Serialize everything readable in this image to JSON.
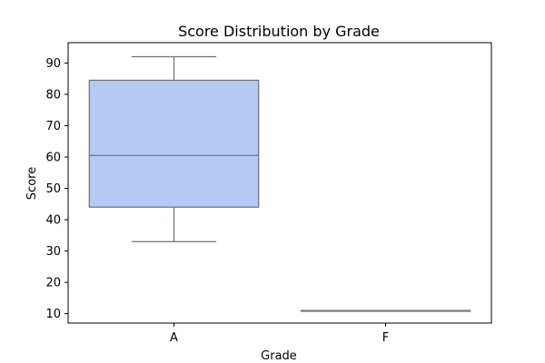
{
  "chart_data": {
    "type": "box",
    "title": "Score Distribution by Grade",
    "xlabel": "Grade",
    "ylabel": "Score",
    "categories": [
      "A",
      "F"
    ],
    "boxes": [
      {
        "category": "A",
        "min": 33,
        "q1": 44,
        "median": 60.5,
        "q3": 84.5,
        "max": 92
      },
      {
        "category": "F",
        "min": 11,
        "q1": 11,
        "median": 11,
        "q3": 11,
        "max": 11
      }
    ],
    "yticks": [
      10,
      20,
      30,
      40,
      50,
      60,
      70,
      80,
      90
    ],
    "ylim": [
      7,
      96.5
    ],
    "grid": false,
    "colors": {
      "box_fill": "#b4c9f4",
      "box_edge": "#707070",
      "axes": "#000000"
    }
  }
}
